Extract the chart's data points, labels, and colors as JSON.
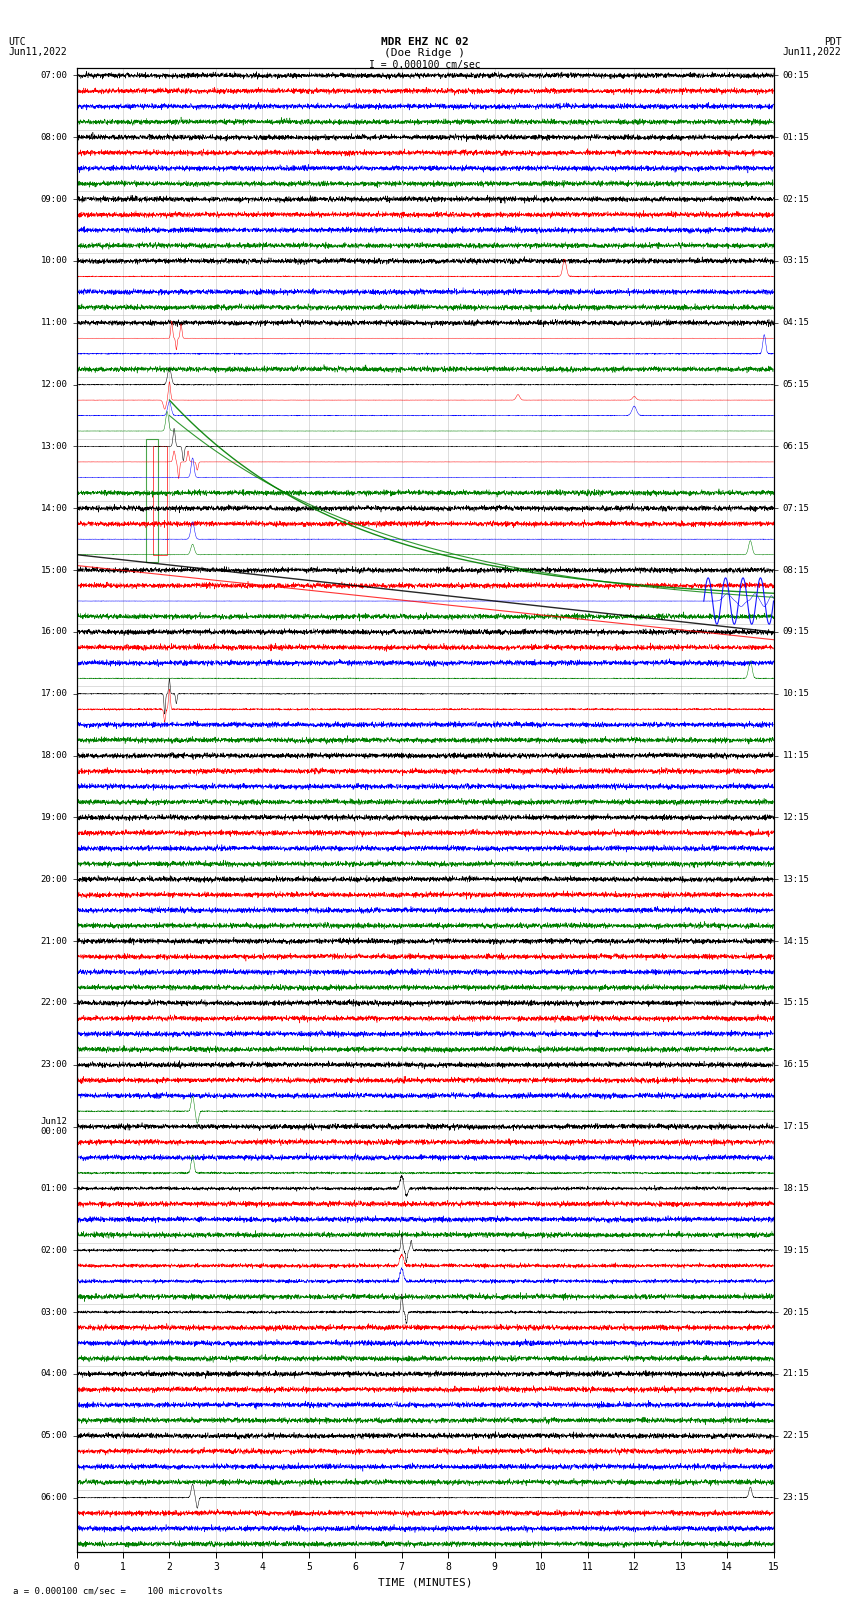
{
  "title_line1": "MDR EHZ NC 02",
  "title_line2": "(Doe Ridge )",
  "scale_label": "I = 0.000100 cm/sec",
  "left_label1": "UTC",
  "left_label2": "Jun11,2022",
  "right_label1": "PDT",
  "right_label2": "Jun11,2022",
  "xlabel": "TIME (MINUTES)",
  "bottom_note": "= 0.000100 cm/sec =    100 microvolts",
  "left_times": [
    "07:00",
    "08:00",
    "09:00",
    "10:00",
    "11:00",
    "12:00",
    "13:00",
    "14:00",
    "15:00",
    "16:00",
    "17:00",
    "18:00",
    "19:00",
    "20:00",
    "21:00",
    "22:00",
    "23:00",
    "Jun12\n00:00",
    "01:00",
    "02:00",
    "03:00",
    "04:00",
    "05:00",
    "06:00"
  ],
  "right_times": [
    "00:15",
    "01:15",
    "02:15",
    "03:15",
    "04:15",
    "05:15",
    "06:15",
    "07:15",
    "08:15",
    "09:15",
    "10:15",
    "11:15",
    "12:15",
    "13:15",
    "14:15",
    "15:15",
    "16:15",
    "17:15",
    "18:15",
    "19:15",
    "20:15",
    "21:15",
    "22:15",
    "23:15"
  ],
  "n_rows": 24,
  "bg_color": "#ffffff",
  "trace_colors": [
    "#000000",
    "#ff0000",
    "#0000ff",
    "#008000"
  ],
  "xmin": 0,
  "xmax": 15,
  "xticks": [
    0,
    1,
    2,
    3,
    4,
    5,
    6,
    7,
    8,
    9,
    10,
    11,
    12,
    13,
    14,
    15
  ],
  "grid_color": "#aaaaaa",
  "noise_levels": [
    0.04,
    0.04,
    0.04,
    0.04,
    0.04,
    0.04,
    0.04,
    0.04,
    0.04,
    0.06,
    0.2,
    0.15,
    0.18,
    0.2,
    0.22,
    0.25,
    0.25,
    0.28,
    0.3,
    0.28,
    0.25,
    0.18,
    0.1,
    0.08
  ]
}
